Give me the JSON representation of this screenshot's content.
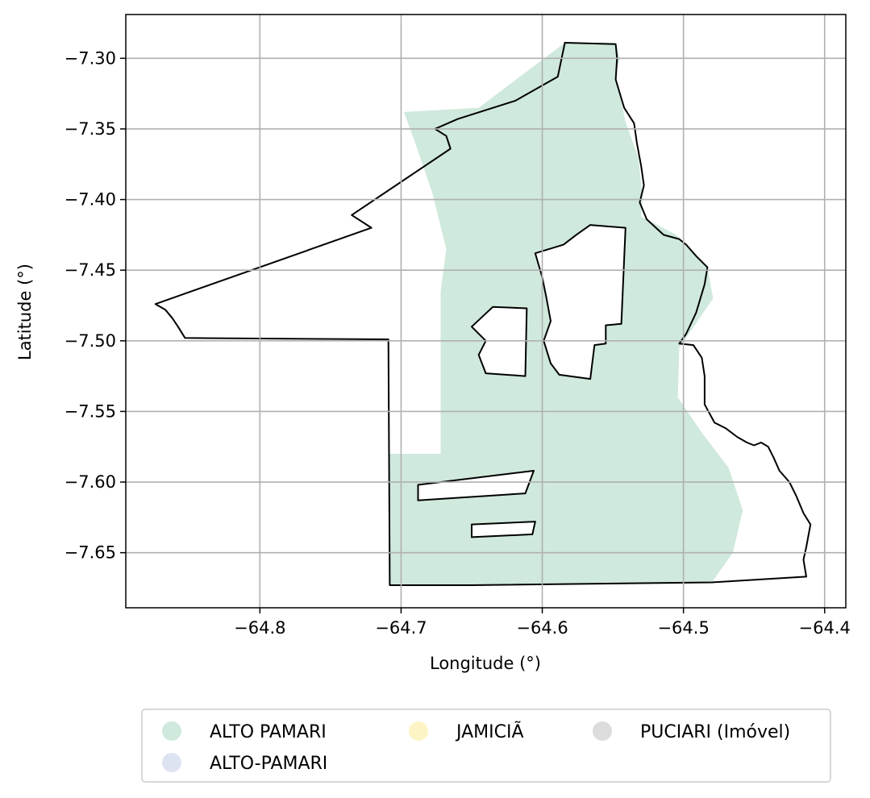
{
  "chart_data": {
    "type": "map",
    "xlabel": "Longitude (°)",
    "ylabel": "Latitude (°)",
    "xlim": [
      -64.895,
      -64.385
    ],
    "ylim": [
      -7.689,
      -7.269
    ],
    "xticks": [
      -64.8,
      -64.7,
      -64.6,
      -64.5,
      -64.4
    ],
    "xtick_labels": [
      "−64.8",
      "−64.7",
      "−64.6",
      "−64.5",
      "−64.4"
    ],
    "yticks": [
      -7.3,
      -7.35,
      -7.4,
      -7.45,
      -7.5,
      -7.55,
      -7.6,
      -7.65
    ],
    "ytick_labels": [
      "−7.30",
      "−7.35",
      "−7.40",
      "−7.45",
      "−7.50",
      "−7.55",
      "−7.60",
      "−7.65"
    ],
    "grid": true,
    "legend_position": "bottom-center",
    "legend_columns": 3,
    "categories": [
      {
        "name": "ALTO PAMARI",
        "color": "#cfe9dc"
      },
      {
        "name": "ALTO-PAMARI",
        "color": "#dde3f1"
      },
      {
        "name": "JAMICIÃ",
        "color": "#fdf4c6"
      },
      {
        "name": "PUCIARI (Imóvel)",
        "color": "#dcdcdc"
      }
    ],
    "fill_region": {
      "category": "ALTO PAMARI",
      "polygon": [
        [
          -64.584,
          -7.289
        ],
        [
          -64.548,
          -7.289
        ],
        [
          -64.545,
          -7.3
        ],
        [
          -64.548,
          -7.312
        ],
        [
          -64.541,
          -7.345
        ],
        [
          -64.532,
          -7.37
        ],
        [
          -64.529,
          -7.398
        ],
        [
          -64.53,
          -7.412
        ],
        [
          -64.505,
          -7.425
        ],
        [
          -64.483,
          -7.448
        ],
        [
          -64.479,
          -7.47
        ],
        [
          -64.503,
          -7.505
        ],
        [
          -64.504,
          -7.54
        ],
        [
          -64.487,
          -7.565
        ],
        [
          -64.468,
          -7.59
        ],
        [
          -64.458,
          -7.62
        ],
        [
          -64.465,
          -7.65
        ],
        [
          -64.48,
          -7.671
        ],
        [
          -64.65,
          -7.673
        ],
        [
          -64.708,
          -7.673
        ],
        [
          -64.708,
          -7.58
        ],
        [
          -64.672,
          -7.58
        ],
        [
          -64.672,
          -7.465
        ],
        [
          -64.668,
          -7.435
        ],
        [
          -64.678,
          -7.395
        ],
        [
          -64.69,
          -7.36
        ],
        [
          -64.698,
          -7.338
        ],
        [
          -64.645,
          -7.335
        ]
      ]
    },
    "outline_polygons": [
      {
        "name": "main-boundary",
        "points": [
          [
            -64.584,
            -7.289
          ],
          [
            -64.548,
            -7.29
          ],
          [
            -64.547,
            -7.3
          ],
          [
            -64.548,
            -7.315
          ],
          [
            -64.542,
            -7.335
          ],
          [
            -64.535,
            -7.346
          ],
          [
            -64.533,
            -7.36
          ],
          [
            -64.53,
            -7.376
          ],
          [
            -64.528,
            -7.39
          ],
          [
            -64.531,
            -7.402
          ],
          [
            -64.526,
            -7.414
          ],
          [
            -64.514,
            -7.425
          ],
          [
            -64.503,
            -7.428
          ],
          [
            -64.498,
            -7.432
          ],
          [
            -64.491,
            -7.44
          ],
          [
            -64.483,
            -7.448
          ],
          [
            -64.485,
            -7.46
          ],
          [
            -64.491,
            -7.48
          ],
          [
            -64.498,
            -7.495
          ],
          [
            -64.503,
            -7.502
          ],
          [
            -64.493,
            -7.503
          ],
          [
            -64.487,
            -7.512
          ],
          [
            -64.485,
            -7.525
          ],
          [
            -64.485,
            -7.545
          ],
          [
            -64.478,
            -7.558
          ],
          [
            -64.47,
            -7.562
          ],
          [
            -64.462,
            -7.568
          ],
          [
            -64.455,
            -7.572
          ],
          [
            -64.45,
            -7.574
          ],
          [
            -64.445,
            -7.572
          ],
          [
            -64.44,
            -7.575
          ],
          [
            -64.436,
            -7.583
          ],
          [
            -64.432,
            -7.592
          ],
          [
            -64.425,
            -7.6
          ],
          [
            -64.42,
            -7.61
          ],
          [
            -64.415,
            -7.622
          ],
          [
            -64.41,
            -7.63
          ],
          [
            -64.413,
            -7.646
          ],
          [
            -64.415,
            -7.655
          ],
          [
            -64.413,
            -7.667
          ],
          [
            -64.48,
            -7.671
          ],
          [
            -64.65,
            -7.673
          ],
          [
            -64.708,
            -7.673
          ],
          [
            -64.709,
            -7.499
          ],
          [
            -64.853,
            -7.498
          ],
          [
            -64.858,
            -7.49
          ],
          [
            -64.862,
            -7.484
          ],
          [
            -64.867,
            -7.478
          ],
          [
            -64.874,
            -7.474
          ],
          [
            -64.721,
            -7.42
          ],
          [
            -64.735,
            -7.411
          ],
          [
            -64.665,
            -7.364
          ],
          [
            -64.668,
            -7.355
          ],
          [
            -64.676,
            -7.35
          ],
          [
            -64.66,
            -7.343
          ],
          [
            -64.619,
            -7.33
          ],
          [
            -64.589,
            -7.313
          ]
        ]
      },
      {
        "name": "hole-1",
        "points": [
          [
            -64.566,
            -7.418
          ],
          [
            -64.541,
            -7.42
          ],
          [
            -64.544,
            -7.488
          ],
          [
            -64.555,
            -7.489
          ],
          [
            -64.555,
            -7.502
          ],
          [
            -64.563,
            -7.503
          ],
          [
            -64.566,
            -7.527
          ],
          [
            -64.588,
            -7.524
          ],
          [
            -64.594,
            -7.516
          ],
          [
            -64.599,
            -7.5
          ],
          [
            -64.594,
            -7.486
          ],
          [
            -64.597,
            -7.47
          ],
          [
            -64.6,
            -7.455
          ],
          [
            -64.605,
            -7.438
          ],
          [
            -64.585,
            -7.432
          ],
          [
            -64.576,
            -7.425
          ]
        ]
      },
      {
        "name": "hole-2",
        "points": [
          [
            -64.635,
            -7.476
          ],
          [
            -64.611,
            -7.477
          ],
          [
            -64.612,
            -7.525
          ],
          [
            -64.64,
            -7.523
          ],
          [
            -64.645,
            -7.51
          ],
          [
            -64.64,
            -7.5
          ],
          [
            -64.65,
            -7.49
          ]
        ]
      },
      {
        "name": "hole-3",
        "points": [
          [
            -64.688,
            -7.602
          ],
          [
            -64.606,
            -7.592
          ],
          [
            -64.612,
            -7.608
          ],
          [
            -64.688,
            -7.613
          ]
        ]
      },
      {
        "name": "hole-4",
        "points": [
          [
            -64.65,
            -7.63
          ],
          [
            -64.605,
            -7.628
          ],
          [
            -64.607,
            -7.637
          ],
          [
            -64.65,
            -7.639
          ]
        ]
      }
    ]
  }
}
